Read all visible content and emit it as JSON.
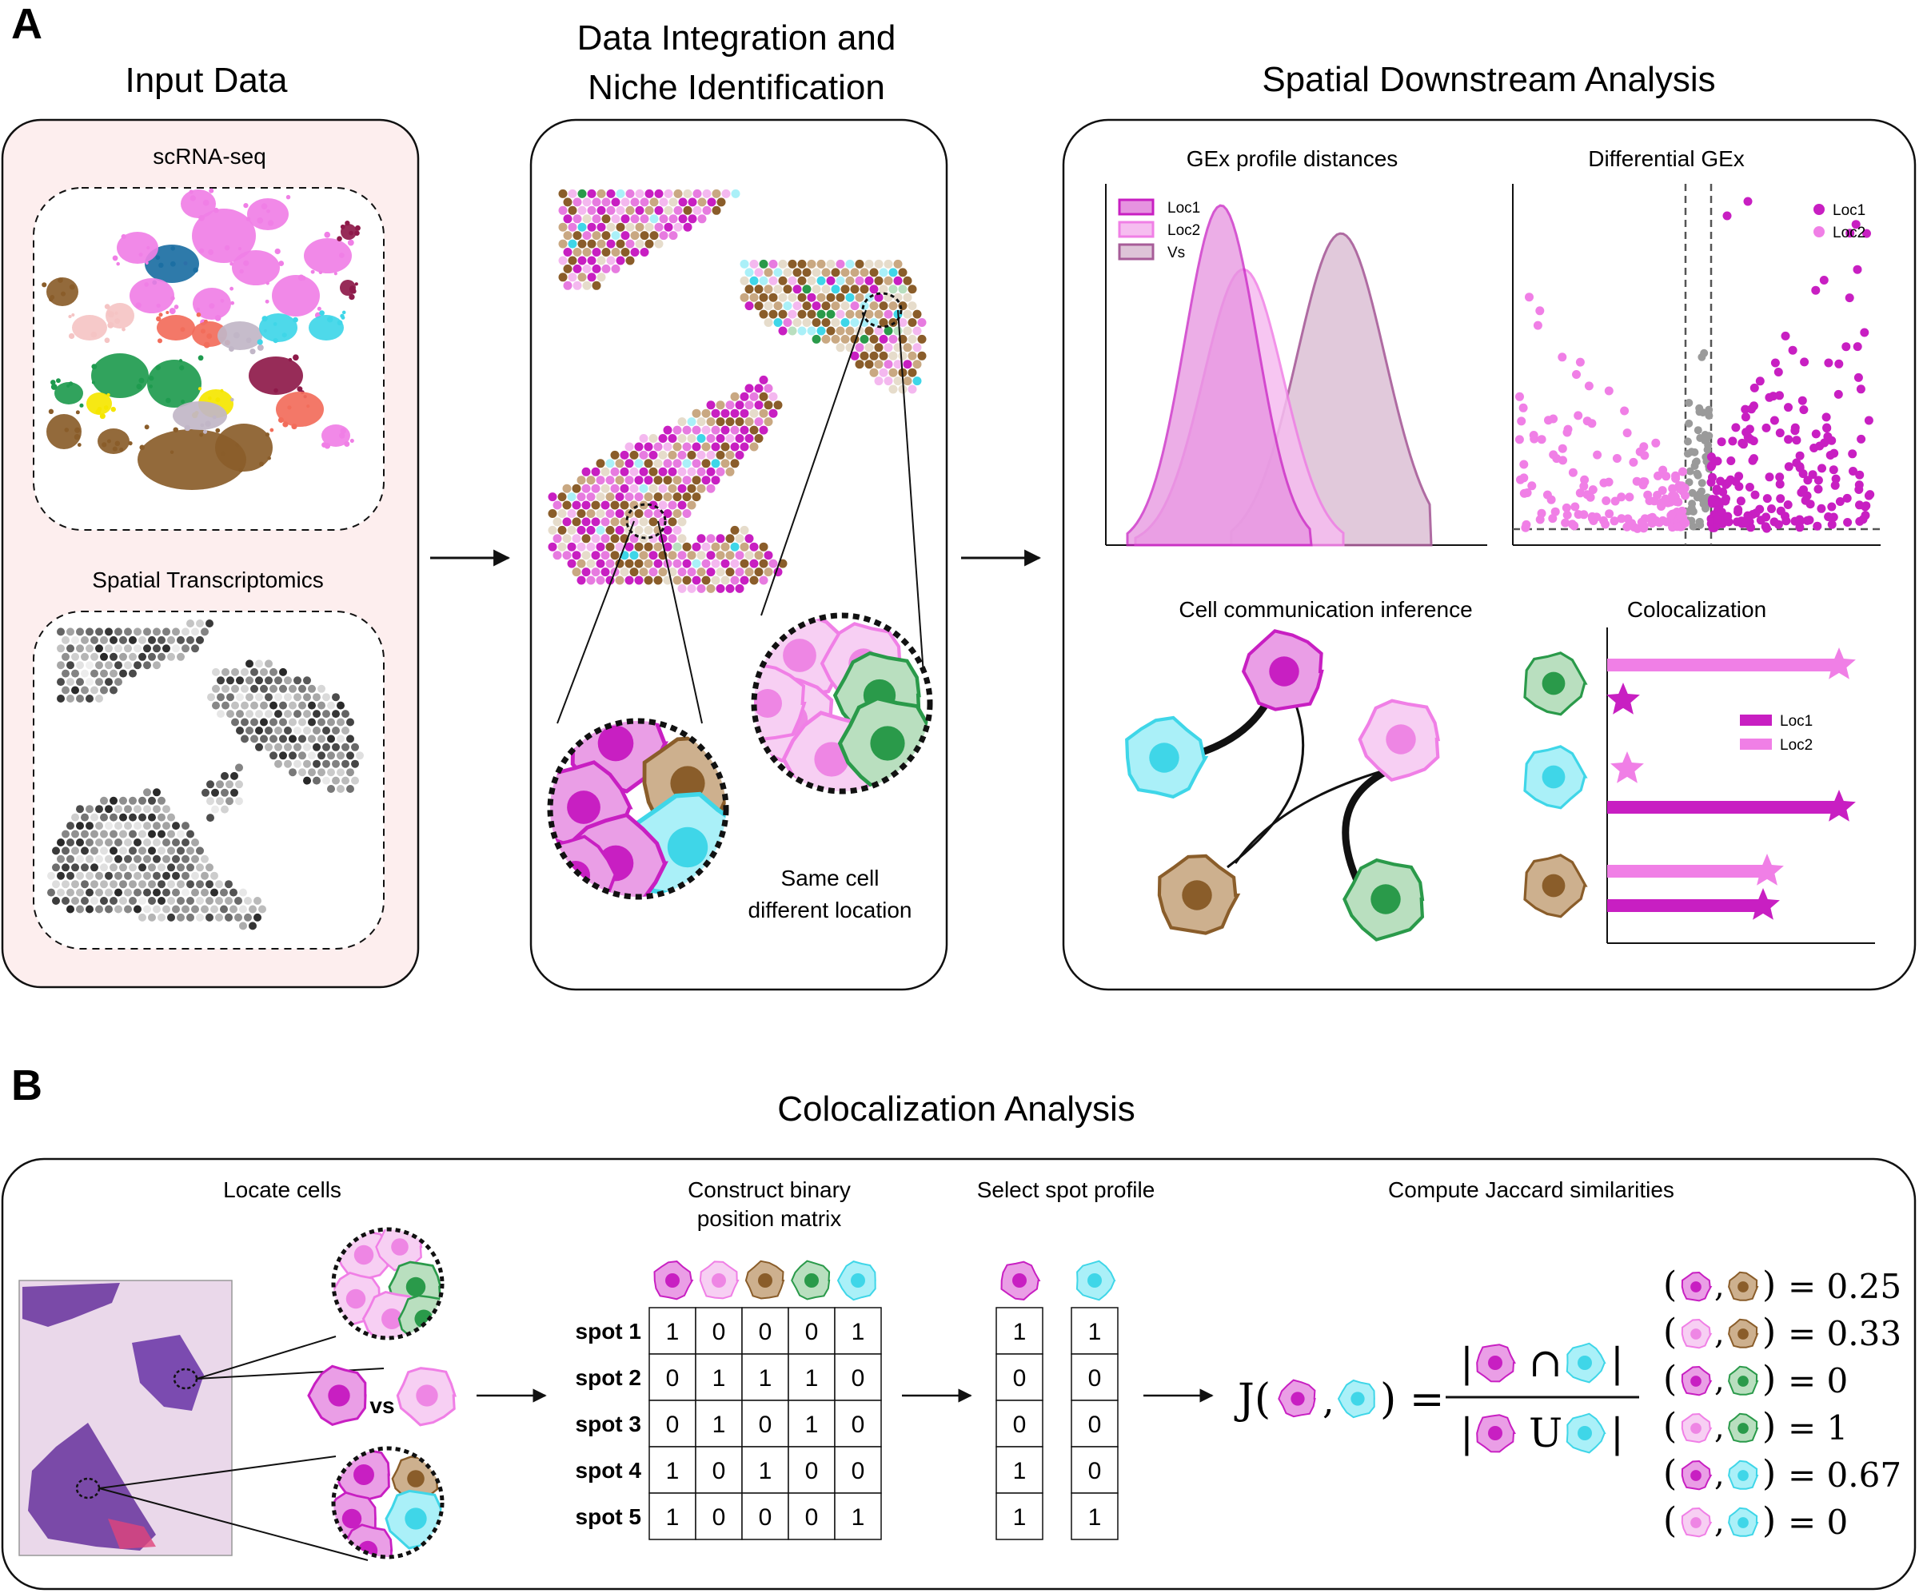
{
  "panel_a": {
    "letter": "A",
    "input": {
      "title": "Input Data",
      "scrna": "scRNA-seq",
      "spatial": "Spatial Transcriptomics"
    },
    "integration": {
      "title_line1": "Data Integration and",
      "title_line2": "Niche Identification",
      "caption_line1": "Same cell",
      "caption_line2": "different location"
    },
    "downstream": {
      "title": "Spatial Downstream Analysis",
      "gex_title": "GEx profile distances",
      "gex_legend": [
        "Loc1",
        "Loc2",
        "Vs"
      ],
      "diff_title": "Differential GEx",
      "diff_legend": [
        "Loc1",
        "Loc2"
      ],
      "comm_title": "Cell communication inference",
      "coloc_title": "Colocalization",
      "coloc_legend": [
        "Loc1",
        "Loc2"
      ]
    }
  },
  "panel_b": {
    "letter": "B",
    "title": "Colocalization Analysis",
    "locate": "Locate cells",
    "vs": "vs",
    "construct_line1": "Construct binary",
    "construct_line2": "position matrix",
    "select": "Select spot profile",
    "compute": "Compute Jaccard similarities",
    "matrix": {
      "rows": [
        "spot 1",
        "spot 2",
        "spot 3",
        "spot 4",
        "spot 5"
      ],
      "values": [
        [
          1,
          0,
          0,
          0,
          1
        ],
        [
          0,
          1,
          1,
          1,
          0
        ],
        [
          0,
          1,
          0,
          1,
          0
        ],
        [
          1,
          0,
          1,
          0,
          0
        ],
        [
          1,
          0,
          0,
          0,
          1
        ]
      ]
    },
    "profile": {
      "a": [
        1,
        0,
        0,
        1,
        1
      ],
      "b": [
        1,
        0,
        0,
        0,
        1
      ]
    },
    "formula": {
      "lhs": "J(",
      "comma": ",",
      "eq": ") =",
      "inter": "∩",
      "union": "U",
      "bar": "|"
    },
    "results": [
      "= 0.25",
      "= 0.33",
      "= 0",
      "= 1",
      "= 0.67",
      "= 0"
    ]
  },
  "colors": {
    "magenta": "#c81fc2",
    "pink": "#f07fe6",
    "light_pink": "#f4b8ef",
    "brown": "#8a5d2a",
    "tan": "#c9a882",
    "green": "#2a9a4a",
    "light_green": "#b9dfbf",
    "cyan": "#3fd6e8",
    "light_cyan": "#aaf0f8",
    "panel_bg": "#fdeeee",
    "mauve": "#b06a9e"
  }
}
